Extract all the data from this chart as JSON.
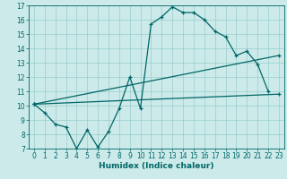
{
  "bg_color": "#cceaea",
  "grid_color": "#99cccc",
  "line_color": "#006666",
  "xlabel": "Humidex (Indice chaleur)",
  "xlim": [
    -0.5,
    23.5
  ],
  "ylim": [
    7,
    17
  ],
  "xticks": [
    0,
    1,
    2,
    3,
    4,
    5,
    6,
    7,
    8,
    9,
    10,
    11,
    12,
    13,
    14,
    15,
    16,
    17,
    18,
    19,
    20,
    21,
    22,
    23
  ],
  "yticks": [
    7,
    8,
    9,
    10,
    11,
    12,
    13,
    14,
    15,
    16,
    17
  ],
  "line1_x": [
    0,
    1,
    2,
    3,
    4,
    5,
    6,
    7,
    8,
    9,
    10,
    11,
    12,
    13,
    14,
    15,
    16,
    17,
    18,
    19,
    20,
    21,
    22
  ],
  "line1_y": [
    10.1,
    9.5,
    8.7,
    8.5,
    7.0,
    8.3,
    7.1,
    8.2,
    9.8,
    12.0,
    9.8,
    15.7,
    16.2,
    16.9,
    16.5,
    16.5,
    16.0,
    15.2,
    14.8,
    13.5,
    13.8,
    12.9,
    11.0
  ],
  "line2_x": [
    0,
    23
  ],
  "line2_y": [
    10.1,
    10.8
  ],
  "line3_x": [
    0,
    23
  ],
  "line3_y": [
    10.1,
    13.5
  ],
  "tick_fontsize": 5.5,
  "xlabel_fontsize": 6.5
}
